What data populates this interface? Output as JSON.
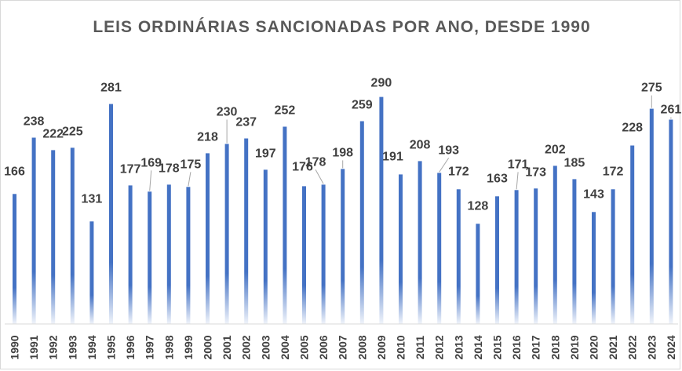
{
  "chart_data": {
    "type": "bar",
    "title": "LEIS ORDINÁRIAS SANCIONADAS POR ANO, DESDE 1990",
    "xlabel": "",
    "ylabel": "",
    "ylim": [
      0,
      300
    ],
    "categories": [
      "1990",
      "1991",
      "1992",
      "1993",
      "1994",
      "1995",
      "1996",
      "1997",
      "1998",
      "1999",
      "2000",
      "2001",
      "2002",
      "2003",
      "2004",
      "2005",
      "2006",
      "2007",
      "2008",
      "2009",
      "2010",
      "2011",
      "2012",
      "2013",
      "2014",
      "2015",
      "2016",
      "2017",
      "2018",
      "2019",
      "2020",
      "2021",
      "2022",
      "2023",
      "2024"
    ],
    "values": [
      166,
      238,
      222,
      225,
      131,
      281,
      177,
      169,
      178,
      175,
      218,
      230,
      237,
      197,
      252,
      176,
      178,
      198,
      259,
      290,
      191,
      208,
      193,
      172,
      128,
      163,
      171,
      173,
      202,
      185,
      143,
      172,
      228,
      275,
      261
    ],
    "bar_color": "#4472c4",
    "grid": false,
    "legend": "none"
  }
}
